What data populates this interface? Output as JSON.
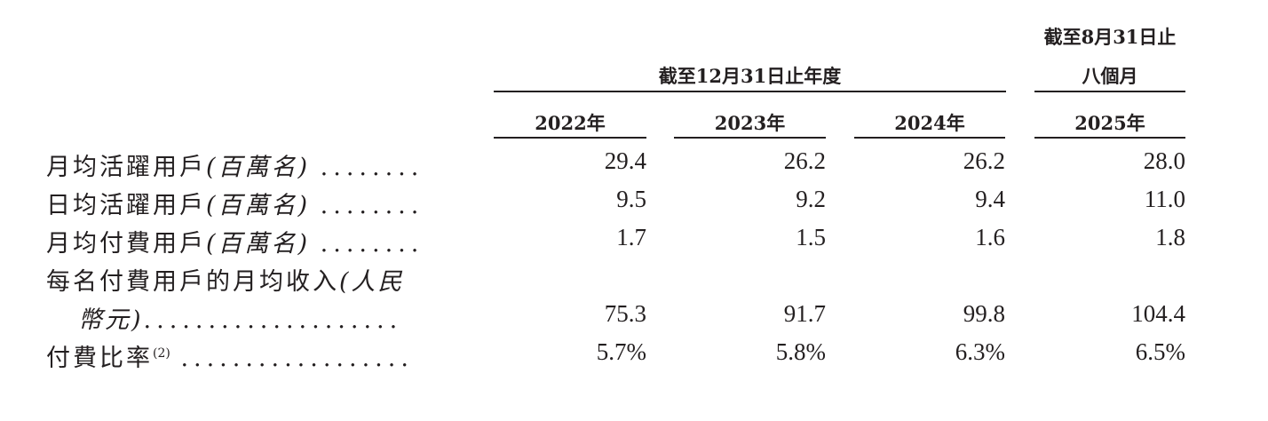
{
  "header": {
    "group_fy": "截至12月31日止年度",
    "group_8m_line1": "截至8月31日止",
    "group_8m_line2": "八個月",
    "years": [
      "2022年",
      "2023年",
      "2024年",
      "2025年"
    ]
  },
  "rows": [
    {
      "label": "月均活躍用戶",
      "unit": "(百萬名)",
      "dots": "........",
      "values": [
        "29.4",
        "26.2",
        "26.2",
        "28.0"
      ]
    },
    {
      "label": "日均活躍用戶",
      "unit": "(百萬名)",
      "dots": "........",
      "values": [
        "9.5",
        "9.2",
        "9.4",
        "11.0"
      ]
    },
    {
      "label": "月均付費用戶",
      "unit": "(百萬名)",
      "dots": "........",
      "values": [
        "1.7",
        "1.5",
        "1.6",
        "1.8"
      ]
    },
    {
      "label": "每名付費用戶的月均收入",
      "unit": "(人民",
      "unit2": "幣元)",
      "dots": "....................",
      "values": [
        "75.3",
        "91.7",
        "99.8",
        "104.4"
      ]
    },
    {
      "label": "付費比率",
      "footnote": "(2)",
      "dots": "..................",
      "values": [
        "5.7%",
        "5.8%",
        "6.3%",
        "6.5%"
      ]
    }
  ]
}
